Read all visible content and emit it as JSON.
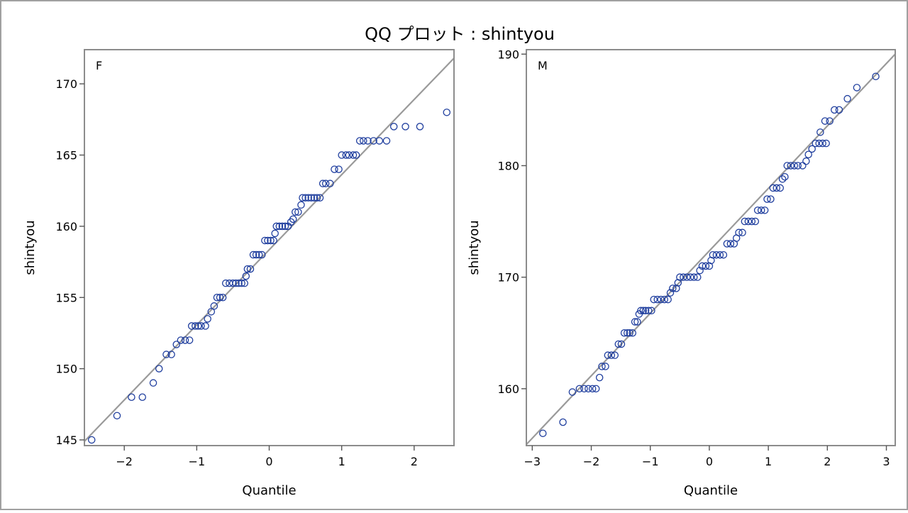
{
  "title": "QQ プロット : shintyou",
  "chart_data": [
    {
      "type": "scatter",
      "panel_label": "F",
      "xlabel": "Quantile",
      "ylabel": "shintyou",
      "xlim": [
        -2.55,
        2.55
      ],
      "ylim": [
        144.6,
        172.4
      ],
      "xticks": [
        -2,
        -1,
        0,
        1,
        2
      ],
      "yticks": [
        145,
        150,
        155,
        160,
        165,
        170
      ],
      "reference_line": [
        [
          -2.55,
          144.9
        ],
        [
          2.55,
          171.8
        ]
      ],
      "points": [
        [
          -2.45,
          145
        ],
        [
          -2.1,
          146.7
        ],
        [
          -1.9,
          148
        ],
        [
          -1.75,
          148
        ],
        [
          -1.6,
          149
        ],
        [
          -1.52,
          150
        ],
        [
          -1.42,
          151
        ],
        [
          -1.35,
          151
        ],
        [
          -1.28,
          151.7
        ],
        [
          -1.22,
          152
        ],
        [
          -1.16,
          152
        ],
        [
          -1.1,
          152
        ],
        [
          -1.07,
          153
        ],
        [
          -1.02,
          153
        ],
        [
          -0.98,
          153
        ],
        [
          -0.94,
          153
        ],
        [
          -0.88,
          153
        ],
        [
          -0.85,
          153.5
        ],
        [
          -0.8,
          154
        ],
        [
          -0.76,
          154.4
        ],
        [
          -0.72,
          155
        ],
        [
          -0.68,
          155
        ],
        [
          -0.64,
          155
        ],
        [
          -0.6,
          156
        ],
        [
          -0.55,
          156
        ],
        [
          -0.5,
          156
        ],
        [
          -0.46,
          156
        ],
        [
          -0.42,
          156
        ],
        [
          -0.38,
          156
        ],
        [
          -0.34,
          156
        ],
        [
          -0.32,
          156.5
        ],
        [
          -0.3,
          157
        ],
        [
          -0.26,
          157
        ],
        [
          -0.22,
          158
        ],
        [
          -0.18,
          158
        ],
        [
          -0.14,
          158
        ],
        [
          -0.1,
          158
        ],
        [
          -0.06,
          159
        ],
        [
          -0.02,
          159
        ],
        [
          0.02,
          159
        ],
        [
          0.06,
          159
        ],
        [
          0.08,
          159.5
        ],
        [
          0.1,
          160
        ],
        [
          0.14,
          160
        ],
        [
          0.18,
          160
        ],
        [
          0.22,
          160
        ],
        [
          0.26,
          160
        ],
        [
          0.3,
          160.3
        ],
        [
          0.33,
          160.5
        ],
        [
          0.36,
          161
        ],
        [
          0.4,
          161
        ],
        [
          0.44,
          161.5
        ],
        [
          0.46,
          162
        ],
        [
          0.5,
          162
        ],
        [
          0.54,
          162
        ],
        [
          0.58,
          162
        ],
        [
          0.62,
          162
        ],
        [
          0.66,
          162
        ],
        [
          0.7,
          162
        ],
        [
          0.74,
          163
        ],
        [
          0.78,
          163
        ],
        [
          0.84,
          163
        ],
        [
          0.9,
          164
        ],
        [
          0.96,
          164
        ],
        [
          1.0,
          165
        ],
        [
          1.06,
          165
        ],
        [
          1.1,
          165
        ],
        [
          1.16,
          165
        ],
        [
          1.2,
          165
        ],
        [
          1.25,
          166
        ],
        [
          1.3,
          166
        ],
        [
          1.36,
          166
        ],
        [
          1.44,
          166
        ],
        [
          1.52,
          166
        ],
        [
          1.62,
          166
        ],
        [
          1.72,
          167
        ],
        [
          1.88,
          167
        ],
        [
          2.08,
          167
        ],
        [
          2.45,
          168
        ]
      ]
    },
    {
      "type": "scatter",
      "panel_label": "M",
      "xlabel": "Quantile",
      "ylabel": "shintyou",
      "xlim": [
        -3.1,
        3.15
      ],
      "ylim": [
        154.9,
        190.4
      ],
      "xticks": [
        -3,
        -2,
        -1,
        0,
        1,
        2,
        3
      ],
      "yticks": [
        160,
        170,
        180,
        190
      ],
      "reference_line": [
        [
          -3.1,
          155.0
        ],
        [
          3.15,
          190.0
        ]
      ],
      "points": [
        [
          -2.82,
          156
        ],
        [
          -2.48,
          157
        ],
        [
          -2.32,
          159.7
        ],
        [
          -2.2,
          160
        ],
        [
          -2.12,
          160
        ],
        [
          -2.05,
          160
        ],
        [
          -1.98,
          160
        ],
        [
          -1.92,
          160
        ],
        [
          -1.86,
          161
        ],
        [
          -1.82,
          162
        ],
        [
          -1.76,
          162
        ],
        [
          -1.72,
          163
        ],
        [
          -1.66,
          163
        ],
        [
          -1.6,
          163
        ],
        [
          -1.54,
          164
        ],
        [
          -1.49,
          164
        ],
        [
          -1.44,
          165
        ],
        [
          -1.39,
          165
        ],
        [
          -1.35,
          165
        ],
        [
          -1.3,
          165
        ],
        [
          -1.26,
          166
        ],
        [
          -1.22,
          166
        ],
        [
          -1.19,
          166.7
        ],
        [
          -1.16,
          167
        ],
        [
          -1.12,
          167
        ],
        [
          -1.08,
          167
        ],
        [
          -1.03,
          167
        ],
        [
          -0.98,
          167
        ],
        [
          -0.94,
          168
        ],
        [
          -0.88,
          168
        ],
        [
          -0.82,
          168
        ],
        [
          -0.76,
          168
        ],
        [
          -0.7,
          168
        ],
        [
          -0.66,
          168.6
        ],
        [
          -0.62,
          169
        ],
        [
          -0.56,
          169
        ],
        [
          -0.53,
          169.5
        ],
        [
          -0.5,
          170
        ],
        [
          -0.44,
          170
        ],
        [
          -0.38,
          170
        ],
        [
          -0.32,
          170
        ],
        [
          -0.26,
          170
        ],
        [
          -0.2,
          170
        ],
        [
          -0.16,
          170.6
        ],
        [
          -0.12,
          171
        ],
        [
          -0.06,
          171
        ],
        [
          0.0,
          171
        ],
        [
          0.03,
          171.5
        ],
        [
          0.06,
          172
        ],
        [
          0.12,
          172
        ],
        [
          0.18,
          172
        ],
        [
          0.24,
          172
        ],
        [
          0.3,
          173
        ],
        [
          0.36,
          173
        ],
        [
          0.42,
          173
        ],
        [
          0.46,
          173.5
        ],
        [
          0.5,
          174
        ],
        [
          0.56,
          174
        ],
        [
          0.6,
          175
        ],
        [
          0.66,
          175
        ],
        [
          0.72,
          175
        ],
        [
          0.78,
          175
        ],
        [
          0.82,
          176
        ],
        [
          0.88,
          176
        ],
        [
          0.94,
          176
        ],
        [
          0.98,
          177
        ],
        [
          1.04,
          177
        ],
        [
          1.08,
          178
        ],
        [
          1.14,
          178
        ],
        [
          1.2,
          178
        ],
        [
          1.24,
          178.8
        ],
        [
          1.28,
          179
        ],
        [
          1.32,
          180
        ],
        [
          1.38,
          180
        ],
        [
          1.44,
          180
        ],
        [
          1.5,
          180
        ],
        [
          1.58,
          180
        ],
        [
          1.64,
          180.4
        ],
        [
          1.68,
          181
        ],
        [
          1.74,
          181.5
        ],
        [
          1.8,
          182
        ],
        [
          1.86,
          182
        ],
        [
          1.92,
          182
        ],
        [
          1.98,
          182
        ],
        [
          1.88,
          183
        ],
        [
          1.96,
          184
        ],
        [
          2.04,
          184
        ],
        [
          2.12,
          185
        ],
        [
          2.2,
          185
        ],
        [
          2.34,
          186
        ],
        [
          2.5,
          187
        ],
        [
          2.82,
          188
        ]
      ]
    }
  ]
}
